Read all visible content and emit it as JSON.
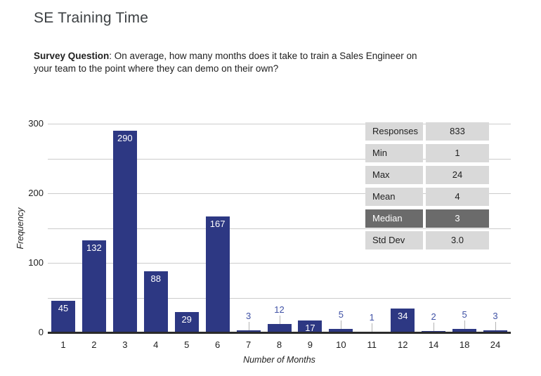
{
  "page": {
    "title": "SE Training Time",
    "survey_label": "Survey Question",
    "survey_rest": ": On average, how many months does it take to train a Sales Engineer on your team to the point where they can demo on their own?"
  },
  "chart_data": {
    "type": "bar",
    "title": "",
    "categories": [
      "1",
      "2",
      "3",
      "4",
      "5",
      "6",
      "7",
      "8",
      "9",
      "10",
      "11",
      "12",
      "14",
      "18",
      "24"
    ],
    "values": [
      45,
      132,
      290,
      88,
      29,
      167,
      3,
      12,
      17,
      5,
      1,
      34,
      2,
      5,
      3
    ],
    "xlabel": "Number of Months",
    "ylabel": "Frequency",
    "ylim": [
      0,
      300
    ],
    "yticks": [
      0,
      100,
      200,
      300
    ],
    "gridline_values": [
      50,
      100,
      150,
      200,
      250,
      300
    ],
    "grid": true,
    "legend": "none",
    "bar_color": "#2d3883",
    "inside_label_color": "#ffffff",
    "outside_label_color": "#3f51a5",
    "inside_label_min_value": 17
  },
  "stats_table": {
    "rows": [
      {
        "label": "Responses",
        "value": "833",
        "highlight": false
      },
      {
        "label": "Min",
        "value": "1",
        "highlight": false
      },
      {
        "label": "Max",
        "value": "24",
        "highlight": false
      },
      {
        "label": "Mean",
        "value": "4",
        "highlight": false
      },
      {
        "label": "Median",
        "value": "3",
        "highlight": true
      },
      {
        "label": "Std Dev",
        "value": "3.0",
        "highlight": false
      }
    ],
    "cell_bg": "#d9d9d9",
    "highlight_bg": "#6b6b6b",
    "text_color": "#212121",
    "highlight_text_color": "#ffffff"
  }
}
